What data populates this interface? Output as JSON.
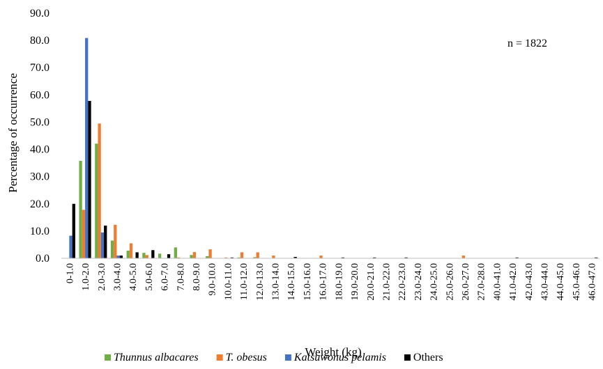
{
  "chart_data": {
    "type": "bar",
    "title": "",
    "xlabel": "Weight (kg)",
    "ylabel": "Percentage of occurrence",
    "ylim": [
      0,
      90
    ],
    "yticks": [
      "0.0",
      "10.0",
      "20.0",
      "30.0",
      "40.0",
      "50.0",
      "60.0",
      "70.0",
      "80.0",
      "90.0"
    ],
    "annotation": "n = 1822",
    "grid": false,
    "legend_position": "bottom",
    "categories": [
      "0-1.0",
      "1.0-2.0",
      "2.0-3.0",
      "3.0-4.0",
      "4.0-5.0",
      "5.0-6.0",
      "6.0-7.0",
      "7.0-8.0",
      "8.0-9.0",
      "9.0-10.0",
      "10.0-11.0",
      "11.0-12.0",
      "12.0-13.0",
      "13.0-14.0",
      "14.0-15.0",
      "15.0-16.0",
      "16.0-17.0",
      "18.0-19.0",
      "19.0-20.0",
      "20.0-21.0",
      "21.0-22.0",
      "22.0-23.0",
      "23.0-24.0",
      "24.0-25.0",
      "25.0-26.0",
      "26.0-27.0",
      "27.0-28.0",
      "40.0-41.0",
      "41.0-42.0",
      "42.0-43.0",
      "43.0-44.0",
      "44.0-45.0",
      "45.0-46.0",
      "46.0-47.0"
    ],
    "series": [
      {
        "name": "Thunnus albacares",
        "italic": true,
        "color": "#70ad47",
        "values": [
          0,
          35.8,
          42.1,
          6.5,
          2.8,
          2.0,
          1.7,
          4.0,
          1.2,
          0.8,
          0,
          0.3,
          0.4,
          0,
          0,
          0,
          0,
          0,
          0,
          0,
          0,
          0,
          0,
          0,
          0,
          0,
          0,
          0,
          0,
          0,
          0,
          0,
          0,
          0
        ]
      },
      {
        "name": "T. obesus",
        "italic": true,
        "color": "#ed7d31",
        "values": [
          0,
          17.8,
          49.5,
          12.3,
          5.5,
          1.2,
          0,
          0.3,
          2.3,
          3.3,
          0.3,
          2.2,
          2.2,
          1.0,
          0,
          0,
          1.0,
          0,
          0,
          0,
          0,
          0,
          0,
          0,
          0,
          1.0,
          0,
          0,
          0,
          0,
          0,
          0,
          0,
          0
        ]
      },
      {
        "name": "Katsuwonus pelamis",
        "italic": true,
        "color": "#4472c4",
        "values": [
          8.3,
          80.9,
          9.5,
          1.0,
          0.1,
          0,
          0,
          0,
          0,
          0,
          0,
          0,
          0,
          0,
          0,
          0,
          0,
          0,
          0,
          0,
          0,
          0,
          0,
          0,
          0,
          0,
          0,
          0,
          0,
          0,
          0,
          0,
          0,
          0
        ]
      },
      {
        "name": "Others",
        "italic": false,
        "color": "#000000",
        "values": [
          20.0,
          57.8,
          12.0,
          1.0,
          2.2,
          3.0,
          1.5,
          0,
          0,
          0,
          0.3,
          0,
          0,
          0,
          0.5,
          0,
          0,
          0.3,
          0,
          0.3,
          0,
          0.3,
          0,
          0,
          0,
          0,
          0,
          0,
          0.3,
          0,
          0,
          0,
          0,
          0.3
        ]
      }
    ]
  }
}
